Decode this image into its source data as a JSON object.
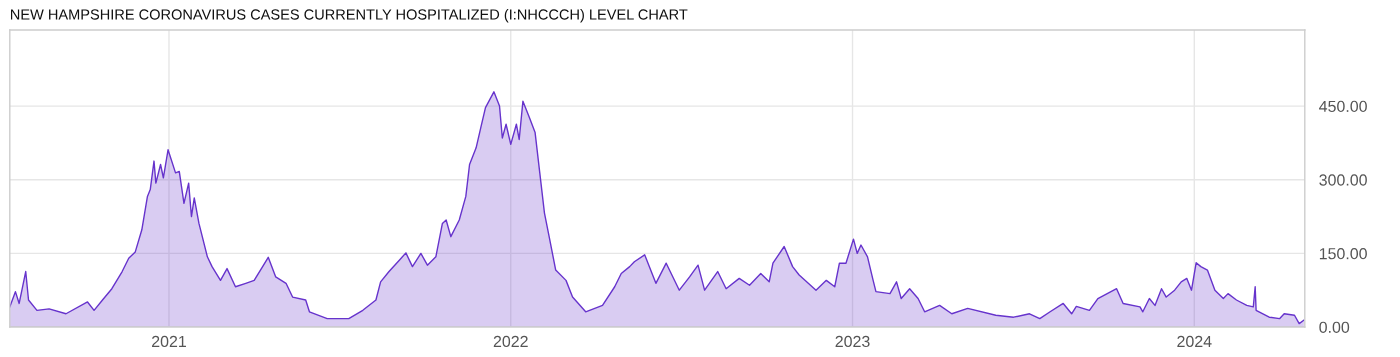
{
  "chart_data": {
    "type": "area",
    "title": "NEW HAMPSHIRE CORONAVIRUS CASES CURRENTLY HOSPITALIZED (I:NHCCCH) LEVEL CHART",
    "x": [
      "2020-07-15",
      "2020-07-21",
      "2020-07-25",
      "2020-08-01",
      "2020-08-04",
      "2020-08-13",
      "2020-08-26",
      "2020-09-13",
      "2020-10-06",
      "2020-10-13",
      "2020-10-22",
      "2020-11-01",
      "2020-11-12",
      "2020-11-19",
      "2020-11-26",
      "2020-12-03",
      "2020-12-09",
      "2020-12-12",
      "2020-12-16",
      "2020-12-18",
      "2020-12-23",
      "2020-12-26",
      "2020-12-31",
      "2021-01-08",
      "2021-01-12",
      "2021-01-17",
      "2021-01-22",
      "2021-01-25",
      "2021-01-28",
      "2021-02-02",
      "2021-02-11",
      "2021-02-16",
      "2021-02-25",
      "2021-03-04",
      "2021-03-13",
      "2021-03-24",
      "2021-04-02",
      "2021-04-11",
      "2021-04-17",
      "2021-04-25",
      "2021-05-06",
      "2021-05-13",
      "2021-05-27",
      "2021-05-31",
      "2021-06-19",
      "2021-07-12",
      "2021-07-27",
      "2021-08-10",
      "2021-08-15",
      "2021-08-24",
      "2021-09-04",
      "2021-09-11",
      "2021-09-18",
      "2021-09-27",
      "2021-10-04",
      "2021-10-13",
      "2021-10-20",
      "2021-10-24",
      "2021-10-29",
      "2021-11-07",
      "2021-11-14",
      "2021-11-18",
      "2021-11-25",
      "2021-11-30",
      "2021-12-05",
      "2021-12-14",
      "2021-12-20",
      "2021-12-23",
      "2021-12-27",
      "2022-01-01",
      "2022-01-07",
      "2022-01-10",
      "2022-01-14",
      "2022-01-21",
      "2022-01-27",
      "2022-02-01",
      "2022-02-06",
      "2022-02-11",
      "2022-02-18",
      "2022-03-01",
      "2022-03-08",
      "2022-03-22",
      "2022-04-09",
      "2022-04-22",
      "2022-04-29",
      "2022-05-08",
      "2022-05-13",
      "2022-05-24",
      "2022-06-05",
      "2022-06-16",
      "2022-06-30",
      "2022-07-11",
      "2022-07-20",
      "2022-07-27",
      "2022-08-10",
      "2022-08-19",
      "2022-09-02",
      "2022-09-13",
      "2022-09-25",
      "2022-10-04",
      "2022-10-08",
      "2022-10-20",
      "2022-10-29",
      "2022-11-05",
      "2022-11-23",
      "2022-12-04",
      "2022-12-13",
      "2022-12-18",
      "2022-12-25",
      "2023-01-02",
      "2023-01-06",
      "2023-01-10",
      "2023-01-17",
      "2023-01-23",
      "2023-01-26",
      "2023-02-10",
      "2023-02-17",
      "2023-02-22",
      "2023-03-03",
      "2023-03-12",
      "2023-03-19",
      "2023-04-04",
      "2023-04-17",
      "2023-05-04",
      "2023-06-03",
      "2023-06-22",
      "2023-07-09",
      "2023-07-20",
      "2023-07-31",
      "2023-08-14",
      "2023-08-23",
      "2023-08-28",
      "2023-09-11",
      "2023-09-20",
      "2023-10-10",
      "2023-10-17",
      "2023-11-04",
      "2023-11-07",
      "2023-11-14",
      "2023-11-20",
      "2023-11-27",
      "2023-12-02",
      "2023-12-11",
      "2023-12-18",
      "2023-12-24",
      "2023-12-29",
      "2024-01-03",
      "2024-01-08",
      "2024-01-15",
      "2024-01-23",
      "2024-02-01",
      "2024-02-06",
      "2024-02-15",
      "2024-02-26",
      "2024-03-04",
      "2024-03-06",
      "2024-03-07",
      "2024-03-21",
      "2024-04-01",
      "2024-04-06",
      "2024-04-17",
      "2024-04-22",
      "2024-04-27"
    ],
    "series": [
      {
        "color": "#6633cc",
        "values": [
          41,
          72,
          48,
          113,
          55,
          34,
          37,
          27,
          51,
          34,
          55,
          78,
          113,
          140,
          153,
          198,
          266,
          280,
          338,
          293,
          331,
          304,
          361,
          314,
          317,
          252,
          293,
          225,
          263,
          211,
          143,
          123,
          95,
          119,
          82,
          89,
          95,
          123,
          142,
          102,
          89,
          61,
          55,
          31,
          17,
          17,
          34,
          55,
          92,
          113,
          136,
          151,
          123,
          150,
          126,
          143,
          211,
          218,
          184,
          218,
          266,
          331,
          365,
          406,
          447,
          479,
          450,
          385,
          413,
          372,
          413,
          382,
          460,
          426,
          396,
          314,
          232,
          184,
          116,
          95,
          61,
          31,
          44,
          82,
          109,
          123,
          133,
          147,
          89,
          130,
          75,
          102,
          126,
          75,
          113,
          78,
          99,
          85,
          109,
          92,
          130,
          164,
          123,
          106,
          75,
          95,
          82,
          130,
          130,
          179,
          150,
          167,
          143,
          95,
          72,
          68,
          92,
          58,
          78,
          58,
          31,
          44,
          27,
          38,
          24,
          20,
          27,
          17,
          31,
          48,
          27,
          42,
          34,
          58,
          78,
          48,
          41,
          31,
          58,
          44,
          78,
          61,
          75,
          92,
          99,
          75,
          131,
          123,
          116,
          75,
          58,
          68,
          55,
          44,
          41,
          82,
          34,
          20,
          17,
          27,
          24,
          7,
          14
        ]
      }
    ],
    "xlim": [
      "2020-07-15",
      "2024-04-28"
    ],
    "xticks": [
      {
        "value": "2021-01-01",
        "label": "2021"
      },
      {
        "value": "2022-01-01",
        "label": "2022"
      },
      {
        "value": "2023-01-01",
        "label": "2023"
      },
      {
        "value": "2024-01-01",
        "label": "2024"
      }
    ],
    "ylim": [
      0,
      605
    ],
    "yticks": [
      {
        "value": 0,
        "label": "0.00"
      },
      {
        "value": 150,
        "label": "150.00"
      },
      {
        "value": 300,
        "label": "300.00"
      },
      {
        "value": 450,
        "label": "450.00"
      }
    ],
    "grid": true
  }
}
